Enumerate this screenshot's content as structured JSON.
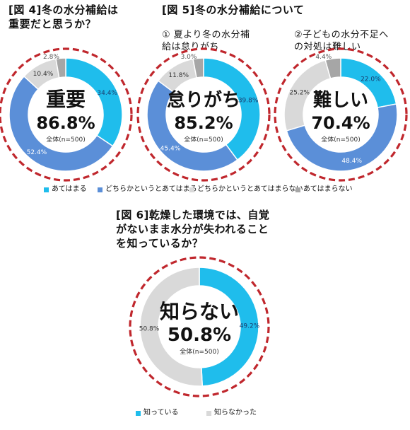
{
  "titles": {
    "fig4": "[図 4]冬の水分補給は\n重要だと思うか？",
    "fig5": "[図 5]冬の水分補給について",
    "fig5_sub1": "① 夏より冬の水分補\n給は怠りがち",
    "fig5_sub2": "②子どもの水分不足へ\nの対処は難しい",
    "fig6": "[図 6]乾燥した環境では、自覚\nがないまま水分が失われること\nを知っているか？"
  },
  "colors": {
    "cyan": "#1fbdec",
    "blue": "#5b8fd8",
    "lightgray": "#d9d9d9",
    "darkgray": "#a6a6a6",
    "dash": "#c0272d"
  },
  "legend_top": [
    {
      "label": "あてはまる",
      "color": "#1fbdec"
    },
    {
      "label": "どちらかというとあてはまる",
      "color": "#5b8fd8"
    },
    {
      "label": "どちらかというとあてはまらない",
      "color": "#d9d9d9"
    },
    {
      "label": "あてはまらない",
      "color": "#a6a6a6"
    }
  ],
  "legend_bottom": [
    {
      "label": "知っている",
      "color": "#1fbdec"
    },
    {
      "label": "知らなかった",
      "color": "#d9d9d9"
    }
  ],
  "chart_data": [
    {
      "type": "pie",
      "id": "fig4",
      "categories": [
        "あてはまる",
        "どちらかというとあてはまる",
        "どちらかというとあてはまらない",
        "あてはまらない"
      ],
      "values": [
        34.4,
        52.4,
        10.4,
        2.8
      ],
      "labels": [
        "34.4%",
        "52.4%",
        "10.4%",
        "2.8%"
      ],
      "center_word": "重要",
      "center_value": "86.8%",
      "center_note": "全体(n=500)"
    },
    {
      "type": "pie",
      "id": "fig5a",
      "categories": [
        "あてはまる",
        "どちらかというとあてはまる",
        "どちらかというとあてはまらない",
        "あてはまらない"
      ],
      "values": [
        39.8,
        45.4,
        11.8,
        3.0
      ],
      "labels": [
        "39.8%",
        "45.4%",
        "11.8%",
        "3.0%"
      ],
      "center_word": "怠りがち",
      "center_value": "85.2%",
      "center_note": "全体(n=500)"
    },
    {
      "type": "pie",
      "id": "fig5b",
      "categories": [
        "あてはまる",
        "どちらかというとあてはまる",
        "どちらかというとあてはまらない",
        "あてはまらない"
      ],
      "values": [
        22.0,
        48.4,
        25.2,
        4.4
      ],
      "labels": [
        "22.0%",
        "48.4%",
        "25.2%",
        "4.4%"
      ],
      "center_word": "難しい",
      "center_value": "70.4%",
      "center_note": "全体(n=500)"
    },
    {
      "type": "pie",
      "id": "fig6",
      "categories": [
        "知っている",
        "知らなかった"
      ],
      "values": [
        49.2,
        50.8
      ],
      "labels": [
        "49.2%",
        "50.8%"
      ],
      "center_word": "知らない",
      "center_value": "50.8%",
      "center_note": "全体(n=500)"
    }
  ]
}
